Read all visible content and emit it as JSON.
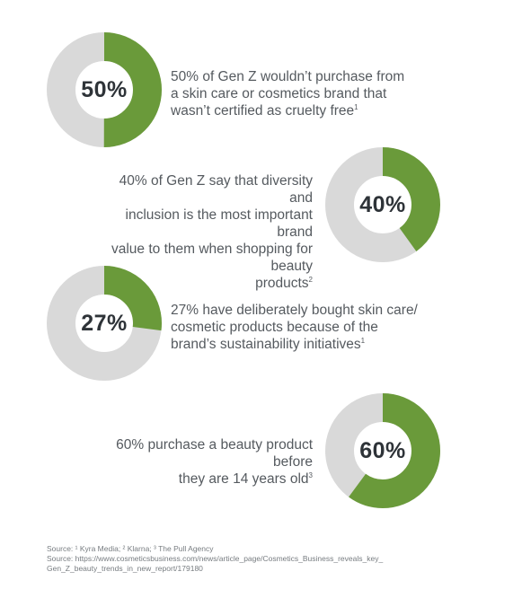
{
  "colors": {
    "filled": "#6a9a3a",
    "track": "#d9d9d9",
    "center": "#ffffff"
  },
  "chart_data": [
    {
      "type": "pie",
      "variant": "donut",
      "value": 50,
      "label": "50%",
      "description": "50% of Gen Z wouldn’t purchase from a skin care or cosmetics brand that wasn’t certified as cruelty free",
      "description_lines": [
        "50% of Gen Z wouldn’t purchase from",
        "a skin care or cosmetics brand that",
        "wasn’t certified as cruelty free"
      ],
      "footnote": "1"
    },
    {
      "type": "pie",
      "variant": "donut",
      "value": 40,
      "label": "40%",
      "description": "40% of Gen Z say that diversity and inclusion is the most important brand value to them when shopping for beauty products",
      "description_lines": [
        "40% of Gen Z say that diversity and",
        "inclusion is the most important brand",
        "value to them when shopping for beauty",
        "products"
      ],
      "footnote": "2"
    },
    {
      "type": "pie",
      "variant": "donut",
      "value": 27,
      "label": "27%",
      "description": "27% have deliberately bought skin care/ cosmetic products because of the brand’s sustainability initiatives",
      "description_lines": [
        "27% have deliberately bought skin care/",
        "cosmetic products because of the",
        "brand’s sustainability initiatives"
      ],
      "footnote": "1"
    },
    {
      "type": "pie",
      "variant": "donut",
      "value": 60,
      "label": "60%",
      "description": "60% purchase a beauty product before they are 14 years old",
      "description_lines": [
        "60% purchase a beauty product before",
        "they are 14 years old"
      ],
      "footnote": "3"
    }
  ],
  "sources": {
    "line1": "Source: ¹ Kyra Media; ² Klarna; ³ The Pull Agency",
    "line2": "Source: https://www.cosmeticsbusiness.com/news/article_page/Cosmetics_Business_reveals_key_",
    "line3": "Gen_Z_beauty_trends_in_new_report/179180"
  }
}
